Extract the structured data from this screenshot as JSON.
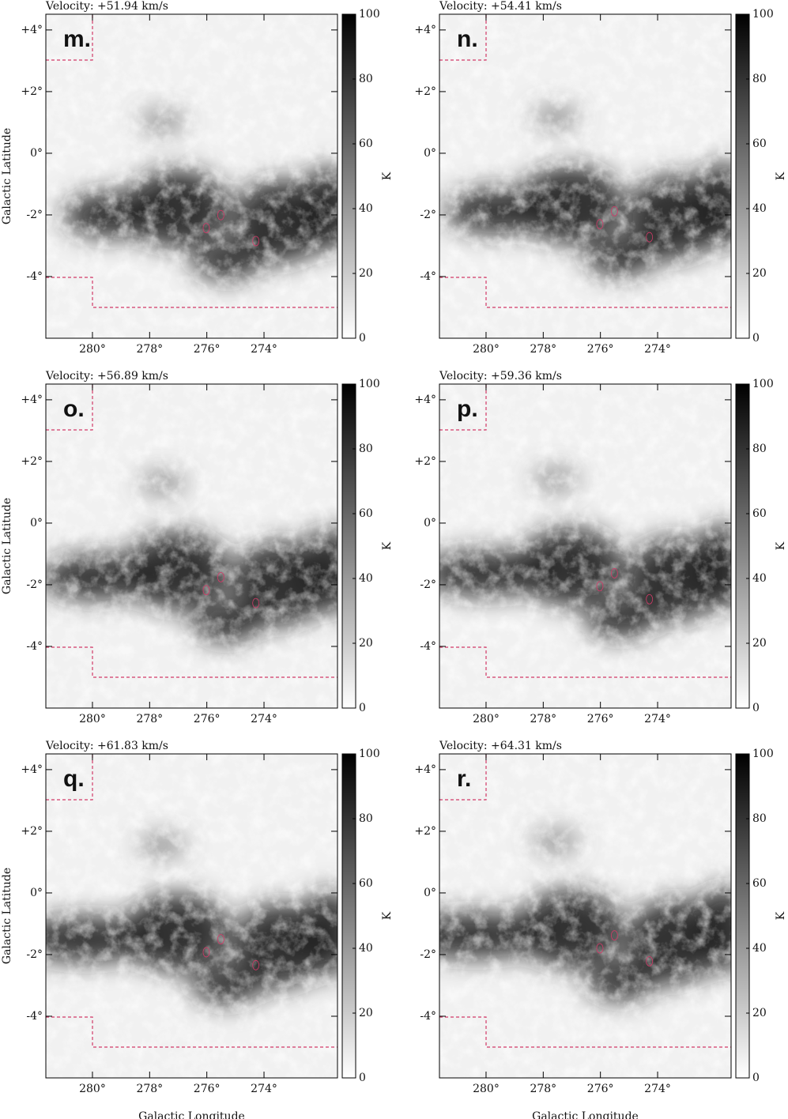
{
  "chart_data": [
    {
      "type": "image",
      "title": "Velocity: +51.94 km/s",
      "panel_label": "m.",
      "y_label": "Galactic Latitude",
      "xlim": [
        281.63,
        271.43
      ],
      "ylim": [
        -6.0,
        4.51
      ],
      "xticks": [
        {
          "value": 280,
          "label": "280°"
        },
        {
          "value": 278,
          "label": "278°"
        },
        {
          "value": 276,
          "label": "276°"
        },
        {
          "value": 274,
          "label": "274°"
        }
      ],
      "yticks": [
        {
          "value": 4,
          "label": "+4°"
        },
        {
          "value": 2,
          "label": "+2°"
        },
        {
          "value": 0,
          "label": "0°"
        },
        {
          "value": -2,
          "label": "-2°"
        },
        {
          "value": -4,
          "label": "-4°"
        }
      ],
      "clim": [
        0,
        100
      ],
      "cticks": [
        0,
        20,
        40,
        60,
        80,
        100
      ],
      "colorbar_label": "K"
    },
    {
      "type": "image",
      "title": "Velocity: +54.41 km/s",
      "panel_label": "n.",
      "xlim": [
        281.63,
        271.43
      ],
      "ylim": [
        -6.0,
        4.51
      ],
      "xticks": [
        {
          "value": 280,
          "label": "280°"
        },
        {
          "value": 278,
          "label": "278°"
        },
        {
          "value": 276,
          "label": "276°"
        },
        {
          "value": 274,
          "label": "274°"
        }
      ],
      "yticks": [
        {
          "value": 4,
          "label": "+4°"
        },
        {
          "value": 2,
          "label": "+2°"
        },
        {
          "value": 0,
          "label": "0°"
        },
        {
          "value": -2,
          "label": "-2°"
        },
        {
          "value": -4,
          "label": "-4°"
        }
      ],
      "clim": [
        0,
        100
      ],
      "cticks": [
        0,
        20,
        40,
        60,
        80,
        100
      ],
      "colorbar_label": "K"
    },
    {
      "type": "image",
      "title": "Velocity: +56.89 km/s",
      "panel_label": "o.",
      "y_label": "Galactic Latitude",
      "xlim": [
        281.63,
        271.43
      ],
      "ylim": [
        -6.0,
        4.51
      ],
      "xticks": [
        {
          "value": 280,
          "label": "280°"
        },
        {
          "value": 278,
          "label": "278°"
        },
        {
          "value": 276,
          "label": "276°"
        },
        {
          "value": 274,
          "label": "274°"
        }
      ],
      "yticks": [
        {
          "value": 4,
          "label": "+4°"
        },
        {
          "value": 2,
          "label": "+2°"
        },
        {
          "value": 0,
          "label": "0°"
        },
        {
          "value": -2,
          "label": "-2°"
        },
        {
          "value": -4,
          "label": "-4°"
        }
      ],
      "clim": [
        0,
        100
      ],
      "cticks": [
        0,
        20,
        40,
        60,
        80,
        100
      ],
      "colorbar_label": "K"
    },
    {
      "type": "image",
      "title": "Velocity: +59.36 km/s",
      "panel_label": "p.",
      "xlim": [
        281.63,
        271.43
      ],
      "ylim": [
        -6.0,
        4.51
      ],
      "xticks": [
        {
          "value": 280,
          "label": "280°"
        },
        {
          "value": 278,
          "label": "278°"
        },
        {
          "value": 276,
          "label": "276°"
        },
        {
          "value": 274,
          "label": "274°"
        }
      ],
      "yticks": [
        {
          "value": 4,
          "label": "+4°"
        },
        {
          "value": 2,
          "label": "+2°"
        },
        {
          "value": 0,
          "label": "0°"
        },
        {
          "value": -2,
          "label": "-2°"
        },
        {
          "value": -4,
          "label": "-4°"
        }
      ],
      "clim": [
        0,
        100
      ],
      "cticks": [
        0,
        20,
        40,
        60,
        80,
        100
      ],
      "colorbar_label": "K"
    },
    {
      "type": "image",
      "title": "Velocity: +61.83 km/s",
      "panel_label": "q.",
      "y_label": "Galactic Latitude",
      "x_label": "Galactic Longitude",
      "xlim": [
        281.63,
        271.43
      ],
      "ylim": [
        -6.0,
        4.51
      ],
      "xticks": [
        {
          "value": 280,
          "label": "280°"
        },
        {
          "value": 278,
          "label": "278°"
        },
        {
          "value": 276,
          "label": "276°"
        },
        {
          "value": 274,
          "label": "274°"
        }
      ],
      "yticks": [
        {
          "value": 4,
          "label": "+4°"
        },
        {
          "value": 2,
          "label": "+2°"
        },
        {
          "value": 0,
          "label": "0°"
        },
        {
          "value": -2,
          "label": "-2°"
        },
        {
          "value": -4,
          "label": "-4°"
        }
      ],
      "clim": [
        0,
        100
      ],
      "cticks": [
        0,
        20,
        40,
        60,
        80,
        100
      ],
      "colorbar_label": "K"
    },
    {
      "type": "image",
      "title": "Velocity: +64.31 km/s",
      "panel_label": "r.",
      "x_label": "Galactic Longitude",
      "xlim": [
        281.63,
        271.43
      ],
      "ylim": [
        -6.0,
        4.51
      ],
      "xticks": [
        {
          "value": 280,
          "label": "280°"
        },
        {
          "value": 278,
          "label": "278°"
        },
        {
          "value": 276,
          "label": "276°"
        },
        {
          "value": 274,
          "label": "274°"
        }
      ],
      "yticks": [
        {
          "value": 4,
          "label": "+4°"
        },
        {
          "value": 2,
          "label": "+2°"
        },
        {
          "value": 0,
          "label": "0°"
        },
        {
          "value": -2,
          "label": "-2°"
        },
        {
          "value": -4,
          "label": "-4°"
        }
      ],
      "clim": [
        0,
        100
      ],
      "cticks": [
        0,
        20,
        40,
        60,
        80,
        100
      ],
      "colorbar_label": "K"
    }
  ]
}
